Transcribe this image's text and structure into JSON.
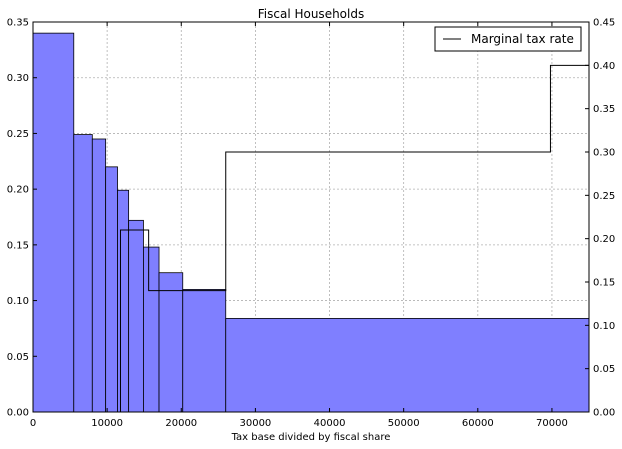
{
  "chart_data": {
    "type": "bar",
    "title": "Fiscal Households",
    "xlabel": "Tax base divided by fiscal share",
    "ylabel": "",
    "y2label": "",
    "xlim": [
      0,
      75000
    ],
    "ylim": [
      0,
      0.35
    ],
    "y2lim": [
      0,
      0.45
    ],
    "grid": true,
    "legend_position": "top-right",
    "x_ticks": [
      0,
      10000,
      20000,
      30000,
      40000,
      50000,
      60000,
      70000
    ],
    "x_tick_labels": [
      "0",
      "10000",
      "20000",
      "30000",
      "40000",
      "50000",
      "60000",
      "70000"
    ],
    "y_ticks": [
      0,
      0.05,
      0.1,
      0.15,
      0.2,
      0.25,
      0.3,
      0.35
    ],
    "y_tick_labels": [
      "0.00",
      "0.05",
      "0.10",
      "0.15",
      "0.20",
      "0.25",
      "0.30",
      "0.35"
    ],
    "y2_ticks": [
      0,
      0.05,
      0.1,
      0.15,
      0.2,
      0.25,
      0.3,
      0.35,
      0.4,
      0.45
    ],
    "y2_tick_labels": [
      "0.00",
      "0.05",
      "0.10",
      "0.15",
      "0.20",
      "0.25",
      "0.30",
      "0.35",
      "0.40",
      "0.45"
    ],
    "histogram": {
      "color": "#7f7fff",
      "bins": [
        {
          "x0": 0,
          "x1": 5500,
          "value": 0.34
        },
        {
          "x0": 5500,
          "x1": 8000,
          "value": 0.249
        },
        {
          "x0": 8000,
          "x1": 9800,
          "value": 0.245
        },
        {
          "x0": 9800,
          "x1": 11400,
          "value": 0.22
        },
        {
          "x0": 11400,
          "x1": 12900,
          "value": 0.199
        },
        {
          "x0": 12900,
          "x1": 14900,
          "value": 0.172
        },
        {
          "x0": 14900,
          "x1": 17000,
          "value": 0.148
        },
        {
          "x0": 17000,
          "x1": 20200,
          "value": 0.125
        },
        {
          "x0": 20200,
          "x1": 26000,
          "value": 0.11
        },
        {
          "x0": 26000,
          "x1": 75000,
          "value": 0.084
        }
      ]
    },
    "series": [
      {
        "name": "Marginal tax rate",
        "type": "step",
        "axis": "right",
        "color": "#000000",
        "x": [
          0,
          11500,
          11800,
          15600,
          26000,
          69800,
          75000
        ],
        "values": [
          0.0,
          0.0,
          0.21,
          0.14,
          0.3,
          0.4,
          0.4
        ]
      }
    ]
  }
}
